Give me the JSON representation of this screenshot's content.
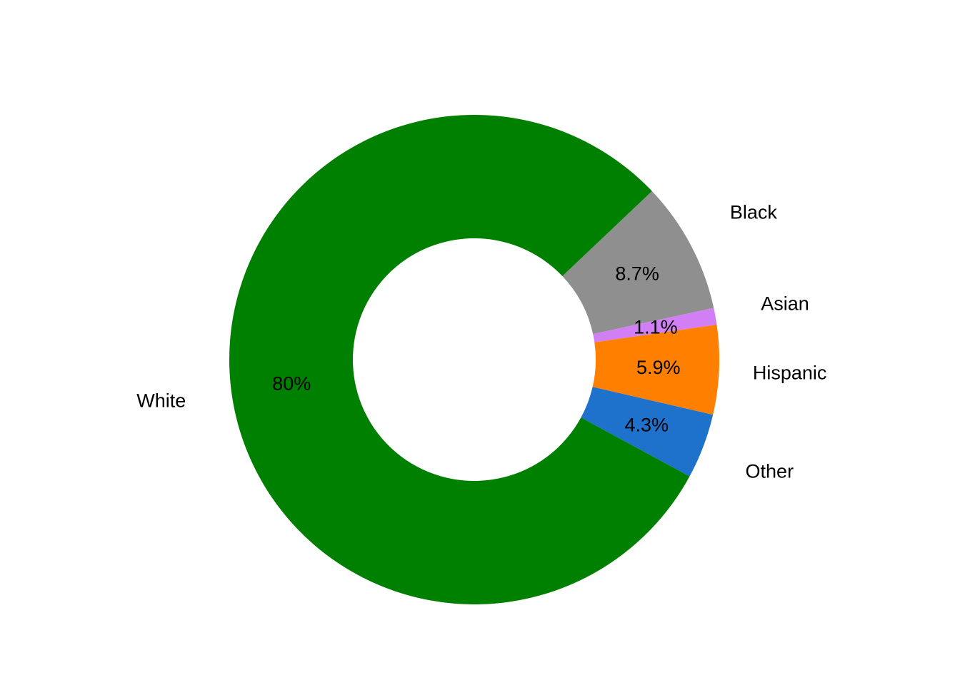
{
  "chart_data": {
    "type": "pie",
    "donut": true,
    "categories": [
      "Black",
      "Asian",
      "Hispanic",
      "Other",
      "White"
    ],
    "values": [
      8.7,
      1.1,
      5.9,
      4.3,
      80
    ],
    "value_labels": [
      "8.7%",
      "1.1%",
      "5.9%",
      "4.3%",
      "80%"
    ],
    "colors": [
      "#8f8f8f",
      "#d27ff5",
      "#ff7f00",
      "#1e72cb",
      "#008000"
    ],
    "legend": "none",
    "title": "",
    "direction": "clockwise"
  }
}
